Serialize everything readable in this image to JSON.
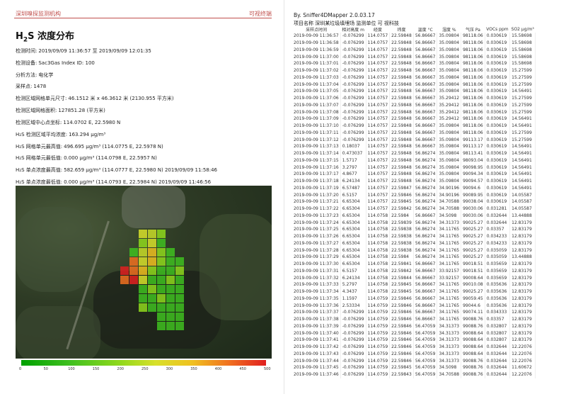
{
  "left_page": {
    "header_left": "深圳嗅探监测机构",
    "header_right": "可视终端",
    "title_main": "H",
    "title_sub": "2",
    "title_rest": "S 浓度分布",
    "info": [
      {
        "label": "检测时间:",
        "value": "2019/09/09 11:36:57 至 2019/09/09 12:01:35"
      },
      {
        "label": "检测设备:",
        "value": "Sac3Gas   Index ID: 100"
      },
      {
        "label": "分析方法:",
        "value": "电化学"
      },
      {
        "label": "采样点:",
        "value": "1478"
      },
      {
        "label": "检测区域网格单元尺寸:",
        "value": "46.1512 米 x 46.3612 米 (2130.955 平方米)"
      },
      {
        "label": "检测区域网格面积:",
        "value": "127851.28 (平方米)"
      },
      {
        "label": "检测区域中心点坐标:",
        "value": "114.0702 E, 22.5980 N"
      },
      {
        "label": "H₂S 检测区域平均浓度:",
        "value": "163.294 μg/m³"
      },
      {
        "label": "H₂S 网格单元最高值:",
        "value": "496.695 μg/m³ (114.0775 E, 22.5978 N)"
      },
      {
        "label": "H₂S 网格单元最低值:",
        "value": "0.000 μg/m³ (114.0798 E, 22.5957 N)"
      },
      {
        "label": "H₂S 单点浓度最高值:",
        "value": "582.659 μg/m³ (114.0777 E, 22.5980 N) 2019/09/09 11:58:46"
      },
      {
        "label": "H₂S 单点浓度最低值:",
        "value": "0.000 μg/m³ (114.0793 E, 22.5984 N) 2019/09/09 11:46:56"
      }
    ],
    "colorbar_ticks": [
      "0",
      "50",
      "100",
      "150",
      "200",
      "250",
      "300",
      "350",
      "400",
      "450",
      "500"
    ],
    "heat_grid": [
      [
        null,
        null,
        "#d8e02a",
        "#c8dc28",
        "#8fd81c",
        null,
        null,
        null
      ],
      [
        null,
        null,
        "#8fd81c",
        "#d8e02a",
        "#40c020",
        null,
        null,
        null
      ],
      [
        null,
        "#40c020",
        "#c8dc28",
        "#f0c020",
        "#8fd81c",
        "#40c020",
        null,
        null
      ],
      [
        null,
        "#f07020",
        "#d8e02a",
        "#f0c020",
        "#8fd81c",
        "#40c020",
        "#40c020",
        null
      ],
      [
        "#e02020",
        "#f07020",
        "#f0c020",
        "#8fd81c",
        "#40c020",
        "#40c020",
        "#8fd81c",
        null
      ],
      [
        "#f07020",
        "#e02020",
        "#d8e02a",
        "#40c020",
        "#40c020",
        "#8fd81c",
        "#40c020",
        null
      ],
      [
        null,
        null,
        "#40c020",
        "#8fd81c",
        "#40c020",
        "#40c020",
        "#40c020",
        null
      ],
      [
        null,
        null,
        "#40c020",
        "#40c020",
        "#8fd81c",
        "#40c020",
        "#40c020",
        null
      ],
      [
        null,
        null,
        "#8fd81c",
        "#40c020",
        "#40c020",
        "#40c020",
        "#40c020",
        null
      ],
      [
        null,
        null,
        null,
        null,
        "#40c020",
        "#40c020",
        "#40c020",
        null
      ],
      [
        null,
        null,
        null,
        null,
        "#40c020",
        "#40c020",
        "#40c020",
        null
      ]
    ]
  },
  "right_page": {
    "software_title": "By. Sniffer4DMapper 2.0.03.17",
    "meta_line": "项目名称 深圳某垃圾填埋场 监测单位 可 视科技",
    "columns": [
      "采样点时间",
      "相对高度 m",
      "经度",
      "纬度",
      "温度 °C",
      "湿度 %",
      "气压 Pa",
      "VOCs ppm",
      "SO2 μg/m³"
    ],
    "rows": [
      [
        "2019-09-09 11:36:57",
        "-0.076299",
        "114.0757",
        "22.59848",
        "56.86667",
        "35.09804",
        "98118.06",
        "0.030619",
        "15.58698"
      ],
      [
        "2019-09-09 11:36:58",
        "-0.076299",
        "114.0757",
        "22.59848",
        "56.86667",
        "35.09804",
        "98118.06",
        "0.030619",
        "15.58698"
      ],
      [
        "2019-09-09 11:36:59",
        "-0.076299",
        "114.0757",
        "22.59848",
        "56.86667",
        "35.09804",
        "98118.06",
        "0.030619",
        "15.58698"
      ],
      [
        "2019-09-09 11:37:00",
        "-0.076299",
        "114.0757",
        "22.59848",
        "56.86667",
        "35.09804",
        "98118.06",
        "0.030619",
        "15.58698"
      ],
      [
        "2019-09-09 11:37:01",
        "-0.076299",
        "114.0757",
        "22.59848",
        "56.86667",
        "35.09804",
        "98118.06",
        "0.030619",
        "15.58698"
      ],
      [
        "2019-09-09 11:37:02",
        "-0.076299",
        "114.0757",
        "22.59848",
        "56.86667",
        "35.09804",
        "98118.06",
        "0.030619",
        "15.27599"
      ],
      [
        "2019-09-09 11:37:03",
        "-0.076299",
        "114.0757",
        "22.59848",
        "56.86667",
        "35.09804",
        "98118.06",
        "0.030619",
        "15.27599"
      ],
      [
        "2019-09-09 11:37:04",
        "-0.076299",
        "114.0757",
        "22.59848",
        "56.86667",
        "35.09804",
        "98118.06",
        "0.030619",
        "15.27599"
      ],
      [
        "2019-09-09 11:37:05",
        "-0.076299",
        "114.0757",
        "22.59848",
        "56.86667",
        "35.09804",
        "98118.06",
        "0.030619",
        "14.56491"
      ],
      [
        "2019-09-09 11:37:06",
        "-0.076299",
        "114.0757",
        "22.59848",
        "56.86667",
        "35.29412",
        "98118.06",
        "0.030619",
        "15.27599"
      ],
      [
        "2019-09-09 11:37:07",
        "-0.076299",
        "114.0757",
        "22.59848",
        "56.86667",
        "35.29412",
        "98118.06",
        "0.030619",
        "15.27599"
      ],
      [
        "2019-09-09 11:37:08",
        "-0.076299",
        "114.0757",
        "22.59848",
        "56.86667",
        "35.29412",
        "98118.06",
        "0.030619",
        "15.27599"
      ],
      [
        "2019-09-09 11:37:09",
        "-0.076299",
        "114.0757",
        "22.59848",
        "56.86667",
        "35.29412",
        "98118.06",
        "0.030619",
        "14.56491"
      ],
      [
        "2019-09-09 11:37:10",
        "-0.076299",
        "114.0757",
        "22.59848",
        "56.86667",
        "35.09804",
        "98118.06",
        "0.030619",
        "14.56491"
      ],
      [
        "2019-09-09 11:37:11",
        "-0.076299",
        "114.0757",
        "22.59848",
        "56.86667",
        "35.09804",
        "98118.06",
        "0.030619",
        "15.27599"
      ],
      [
        "2019-09-09 11:37:12",
        "-0.076299",
        "114.0757",
        "22.59848",
        "56.86667",
        "35.09804",
        "99113.17",
        "0.030619",
        "15.27599"
      ],
      [
        "2019-09-09 11:37:13",
        "0.18037",
        "114.0757",
        "22.59848",
        "56.86667",
        "35.09804",
        "99113.17",
        "0.030619",
        "14.56491"
      ],
      [
        "2019-09-09 11:37:14",
        "0.473037",
        "114.0757",
        "22.59848",
        "56.86274",
        "35.09804",
        "98113.41",
        "0.030619",
        "14.56491"
      ],
      [
        "2019-09-09 11:37:15",
        "1.5717",
        "114.0757",
        "22.59848",
        "56.86274",
        "35.09804",
        "98093.04",
        "0.030619",
        "14.56491"
      ],
      [
        "2019-09-09 11:37:16",
        "3.2797",
        "114.0757",
        "22.59848",
        "56.86274",
        "35.09804",
        "99098.95",
        "0.030619",
        "14.56491"
      ],
      [
        "2019-09-09 11:37:17",
        "4.8677",
        "114.0757",
        "22.59848",
        "56.86274",
        "35.09804",
        "99094.34",
        "0.030619",
        "14.56491"
      ],
      [
        "2019-09-09 11:37:18",
        "6.24134",
        "114.0757",
        "22.59848",
        "56.86274",
        "35.09804",
        "99094.57",
        "0.030619",
        "14.56491"
      ],
      [
        "2019-09-09 11:37:19",
        "6.57487",
        "114.0757",
        "22.59847",
        "56.86274",
        "34.90196",
        "99094.6",
        "0.030619",
        "14.56491"
      ],
      [
        "2019-09-09 11:37:20",
        "6.5157",
        "114.0757",
        "22.59846",
        "56.86274",
        "34.90196",
        "99089.95",
        "0.030619",
        "14.05587"
      ],
      [
        "2019-09-09 11:37:21",
        "6.65304",
        "114.0757",
        "22.59845",
        "56.86274",
        "34.70588",
        "99038.04",
        "0.030619",
        "14.05587"
      ],
      [
        "2019-09-09 11:37:22",
        "6.65304",
        "114.0757",
        "22.59842",
        "56.86274",
        "34.70588",
        "99030.06",
        "0.031281",
        "14.05587"
      ],
      [
        "2019-09-09 11:37:23",
        "6.65304",
        "114.0758",
        "22.5984",
        "56.86667",
        "34.5098",
        "99030.06",
        "0.032644",
        "13.44888"
      ],
      [
        "2019-09-09 11:37:24",
        "6.65304",
        "114.0758",
        "22.59839",
        "56.86274",
        "34.31373",
        "99025.27",
        "0.032644",
        "12.83179"
      ],
      [
        "2019-09-09 11:37:25",
        "6.65304",
        "114.0758",
        "22.59838",
        "56.86274",
        "34.11765",
        "99025.27",
        "0.03357",
        "12.83179"
      ],
      [
        "2019-09-09 11:37:26",
        "6.65304",
        "114.0758",
        "22.59838",
        "56.86274",
        "34.11765",
        "99025.27",
        "0.034233",
        "12.83179"
      ],
      [
        "2019-09-09 11:37:27",
        "6.65304",
        "114.0758",
        "22.59838",
        "56.86274",
        "34.11765",
        "99025.27",
        "0.034233",
        "12.83179"
      ],
      [
        "2019-09-09 11:37:28",
        "6.65304",
        "114.0758",
        "22.59838",
        "56.86274",
        "34.11765",
        "99025.27",
        "0.035059",
        "12.83179"
      ],
      [
        "2019-09-09 11:37:29",
        "6.65304",
        "114.0758",
        "22.5984",
        "56.86274",
        "34.11765",
        "99025.27",
        "0.035059",
        "13.44888"
      ],
      [
        "2019-09-09 11:37:30",
        "6.65304",
        "114.0758",
        "22.59841",
        "56.86667",
        "34.11765",
        "99018.51",
        "0.035659",
        "12.83179"
      ],
      [
        "2019-09-09 11:37:31",
        "6.5157",
        "114.0758",
        "22.59842",
        "56.86667",
        "33.92157",
        "99018.51",
        "0.035659",
        "12.83179"
      ],
      [
        "2019-09-09 11:37:32",
        "6.24134",
        "114.0758",
        "22.59844",
        "56.86667",
        "33.92157",
        "99008.64",
        "0.035659",
        "12.83179"
      ],
      [
        "2019-09-09 11:37:33",
        "5.2797",
        "114.0758",
        "22.59845",
        "56.86667",
        "34.11765",
        "99010.08",
        "0.035636",
        "12.83179"
      ],
      [
        "2019-09-09 11:37:34",
        "4.3437",
        "114.0758",
        "22.59845",
        "56.86667",
        "34.11765",
        "99025.27",
        "0.035636",
        "12.83179"
      ],
      [
        "2019-09-09 11:37:35",
        "1.1597",
        "114.0759",
        "22.59846",
        "56.86667",
        "34.11765",
        "99059.45",
        "0.035636",
        "12.83179"
      ],
      [
        "2019-09-09 11:37:36",
        "2.53334",
        "114.0759",
        "22.59846",
        "56.86667",
        "34.11765",
        "99044.6",
        "0.035636",
        "12.83179"
      ],
      [
        "2019-09-09 11:37:37",
        "-0.076299",
        "114.0759",
        "22.59846",
        "56.86667",
        "34.11765",
        "99074.11",
        "0.034333",
        "12.83179"
      ],
      [
        "2019-09-09 11:37:38",
        "-0.076299",
        "114.0759",
        "22.59846",
        "56.86667",
        "34.11765",
        "99088.76",
        "0.03357",
        "12.83179"
      ],
      [
        "2019-09-09 11:37:39",
        "-0.076299",
        "114.0759",
        "22.59846",
        "56.47059",
        "34.31373",
        "99088.76",
        "0.032807",
        "12.83179"
      ],
      [
        "2019-09-09 11:37:40",
        "-0.076299",
        "114.0759",
        "22.59846",
        "56.47059",
        "34.31373",
        "99088.64",
        "0.032807",
        "12.83179"
      ],
      [
        "2019-09-09 11:37:41",
        "-0.076299",
        "114.0759",
        "22.59846",
        "56.47059",
        "34.31373",
        "99088.64",
        "0.032807",
        "12.83179"
      ],
      [
        "2019-09-09 11:37:42",
        "-0.076299",
        "114.0759",
        "22.59846",
        "56.47059",
        "34.31373",
        "99088.64",
        "0.032644",
        "12.22076"
      ],
      [
        "2019-09-09 11:37:43",
        "-0.076299",
        "114.0759",
        "22.59846",
        "56.47059",
        "34.31373",
        "99088.64",
        "0.032644",
        "12.22076"
      ],
      [
        "2019-09-09 11:37:44",
        "-0.076299",
        "114.0759",
        "22.59846",
        "56.47059",
        "34.31373",
        "99088.76",
        "0.032644",
        "12.22076"
      ],
      [
        "2019-09-09 11:37:45",
        "-0.076299",
        "114.0759",
        "22.59845",
        "56.47059",
        "34.5098",
        "99088.76",
        "0.032644",
        "11.60672"
      ],
      [
        "2019-09-09 11:37:46",
        "-0.076299",
        "114.0759",
        "22.59843",
        "56.47059",
        "34.70588",
        "99088.76",
        "0.032644",
        "12.22076"
      ]
    ]
  }
}
